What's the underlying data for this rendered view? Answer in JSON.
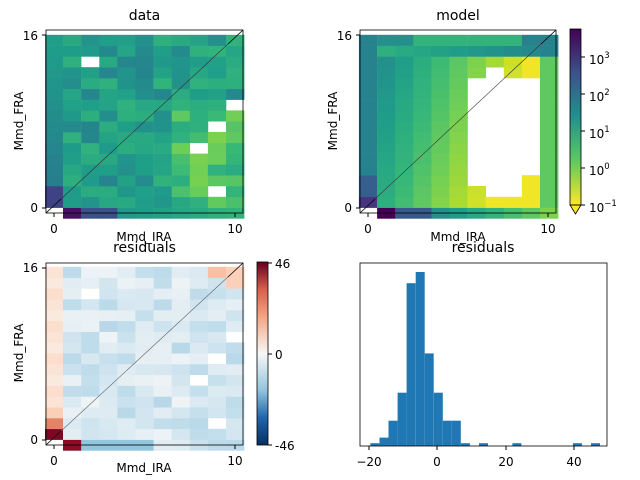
{
  "chart_data": [
    {
      "type": "heatmap",
      "title": "data",
      "xlabel": "Mmd_IRA",
      "ylabel": "Mmd_FRA",
      "x_ticks": [
        "0",
        "10"
      ],
      "y_ticks": [
        "0",
        "16"
      ],
      "xlim": [
        -1,
        10.5
      ],
      "ylim": [
        -0.5,
        16.5
      ],
      "colormap": "viridis_r",
      "scale": "log",
      "diagonal_line": true
    },
    {
      "type": "heatmap",
      "title": "model",
      "xlabel": "Mmd_IRA",
      "ylabel": "Mmd_FRA",
      "x_ticks": [
        "0",
        "10"
      ],
      "y_ticks": [
        "0",
        "16"
      ],
      "xlim": [
        -1,
        10.5
      ],
      "ylim": [
        -0.5,
        16.5
      ],
      "colormap": "viridis_r",
      "scale": "log",
      "diagonal_line": true,
      "colorbar": {
        "ticks": [
          "10^-1",
          "10^0",
          "10^1",
          "10^2",
          "10^3"
        ],
        "ticks_base": [
          "10",
          "10",
          "10",
          "10",
          "10"
        ],
        "ticks_exp": [
          "−1",
          "0",
          "1",
          "2",
          "3"
        ],
        "range": [
          0.1,
          5000
        ],
        "extend": "min"
      }
    },
    {
      "type": "heatmap",
      "title": "residuals",
      "xlabel": "Mmd_IRA",
      "ylabel": "Mmd_FRA",
      "x_ticks": [
        "0",
        "10"
      ],
      "y_ticks": [
        "0",
        "16"
      ],
      "xlim": [
        -1,
        10.5
      ],
      "ylim": [
        -0.5,
        16.5
      ],
      "colormap": "RdBu_r",
      "diagonal_line": true,
      "colorbar": {
        "ticks": [
          "46",
          "0",
          "-46"
        ],
        "range": [
          -46,
          46
        ]
      }
    },
    {
      "type": "bar",
      "title": "residuals",
      "x_ticks": [
        "−20",
        "0",
        "20",
        "40"
      ],
      "xlim": [
        -23,
        48
      ],
      "color": "#1f77b4",
      "bins": [
        {
          "x0": -20,
          "x1": -17.4,
          "count": 1
        },
        {
          "x0": -17.4,
          "x1": -14.8,
          "count": 3
        },
        {
          "x0": -14.8,
          "x1": -12.2,
          "count": 9
        },
        {
          "x0": -12.2,
          "x1": -9.6,
          "count": 19
        },
        {
          "x0": -9.6,
          "x1": -7.0,
          "count": 58
        },
        {
          "x0": -7.0,
          "x1": -4.4,
          "count": 62
        },
        {
          "x0": -4.4,
          "x1": -1.8,
          "count": 33
        },
        {
          "x0": -1.8,
          "x1": 0.8,
          "count": 19
        },
        {
          "x0": 0.8,
          "x1": 3.4,
          "count": 9
        },
        {
          "x0": 3.4,
          "x1": 6.0,
          "count": 9
        },
        {
          "x0": 6.0,
          "x1": 8.6,
          "count": 1
        },
        {
          "x0": 8.6,
          "x1": 11.2,
          "count": 0
        },
        {
          "x0": 11.2,
          "x1": 13.8,
          "count": 1
        },
        {
          "x0": 20.8,
          "x1": 23.4,
          "count": 1
        },
        {
          "x0": 38.2,
          "x1": 40.8,
          "count": 1
        },
        {
          "x0": 43.4,
          "x1": 46.0,
          "count": 1
        }
      ]
    }
  ]
}
